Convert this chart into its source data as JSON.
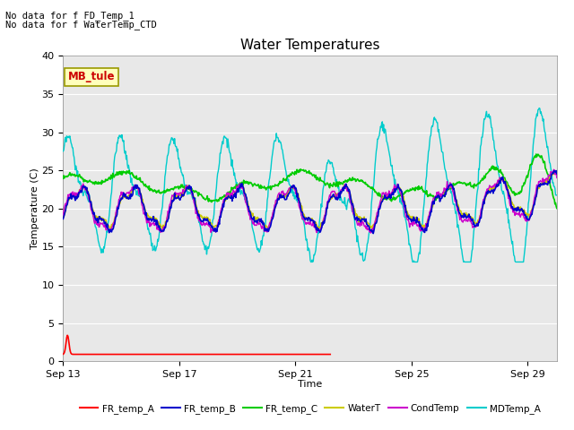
{
  "title": "Water Temperatures",
  "xlabel": "Time",
  "ylabel": "Temperature (C)",
  "ylim": [
    0,
    40
  ],
  "xlim_days": [
    0,
    17
  ],
  "x_ticks_labels": [
    "Sep 13",
    "Sep 17",
    "Sep 21",
    "Sep 25",
    "Sep 29"
  ],
  "x_ticks_pos": [
    0,
    4,
    8,
    12,
    16
  ],
  "y_ticks": [
    0,
    5,
    10,
    15,
    20,
    25,
    30,
    35,
    40
  ],
  "bg_color": "#e8e8e8",
  "fig_color": "#ffffff",
  "top_text1": "No data for f FD_Temp_1",
  "top_text2": "No data for f WaterTemp_CTD",
  "mb_tule_label": "MB_tule",
  "legend_entries": [
    "FR_temp_A",
    "FR_temp_B",
    "FR_temp_C",
    "WaterT",
    "CondTemp",
    "MDTemp_A"
  ],
  "legend_colors": [
    "#ff0000",
    "#0000cc",
    "#00cc00",
    "#cccc00",
    "#cc00cc",
    "#00cccc"
  ],
  "line_widths": [
    1.5,
    1.5,
    1.5,
    1.5,
    1.5,
    1.5
  ],
  "font_family": "DejaVu Sans",
  "title_fontsize": 11,
  "axis_fontsize": 8,
  "tick_fontsize": 8
}
